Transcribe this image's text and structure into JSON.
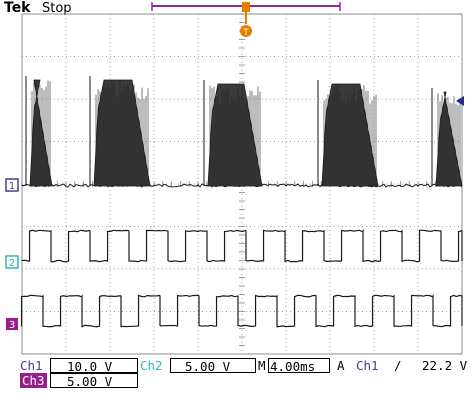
{
  "header": {
    "brand": "Tek",
    "status": "Stop"
  },
  "trigger": {
    "marker_glyph": "T",
    "color": "#e87a00"
  },
  "channels": [
    {
      "id": "1",
      "color": "#4a3c88",
      "marker": "1"
    },
    {
      "id": "2",
      "color": "#2eb8b8",
      "marker": "2"
    },
    {
      "id": "3",
      "color": "#9a1e8a",
      "marker": "3"
    }
  ],
  "readout": {
    "ch1_label": "Ch1",
    "ch1_scale": "10.0 V",
    "ch2_label": "Ch2",
    "ch2_scale": "5.00 V",
    "timebase_label": "M",
    "timebase": "4.00ms",
    "trig_mode": "A",
    "trig_source": "Ch1",
    "trig_slope": "/",
    "trig_level": "22.2 V",
    "ch3_label": "Ch3",
    "ch3_scale": "5.00 V"
  },
  "colors": {
    "grid": "#8c8c8c",
    "trace": "#1a1a1a",
    "record_bar": "#8a2a9a",
    "background": "#ffffff"
  }
}
